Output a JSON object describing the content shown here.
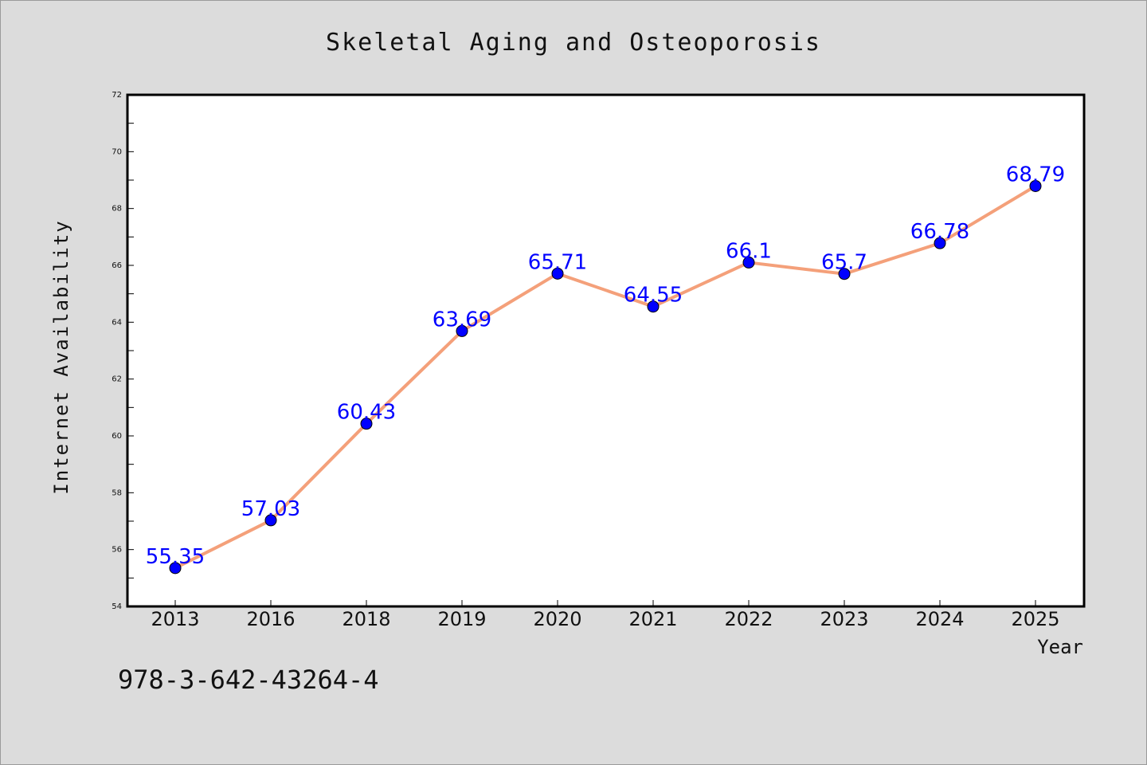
{
  "chart_data": {
    "type": "line",
    "title": "Skeletal Aging and Osteoporosis",
    "xlabel": "Year",
    "ylabel": "Internet Availability",
    "categories": [
      "2013",
      "2016",
      "2018",
      "2019",
      "2020",
      "2021",
      "2022",
      "2023",
      "2024",
      "2025"
    ],
    "values": [
      55.35,
      57.03,
      60.43,
      63.69,
      65.71,
      64.55,
      66.1,
      65.7,
      66.78,
      68.79
    ],
    "data_labels": [
      "55.35",
      "57.03",
      "60.43",
      "63.69",
      "65.71",
      "64.55",
      "66.1",
      "65.7",
      "66.78",
      "68.79"
    ],
    "ylim": [
      54,
      72
    ],
    "yticks": [
      "54",
      "56",
      "58",
      "60",
      "62",
      "64",
      "66",
      "68",
      "70",
      "72"
    ],
    "grid": false,
    "line_color": "#f4a07a",
    "marker_color": "#0000ff",
    "label_color": "#0000ff"
  },
  "footer_text": "978-3-642-43264-4"
}
